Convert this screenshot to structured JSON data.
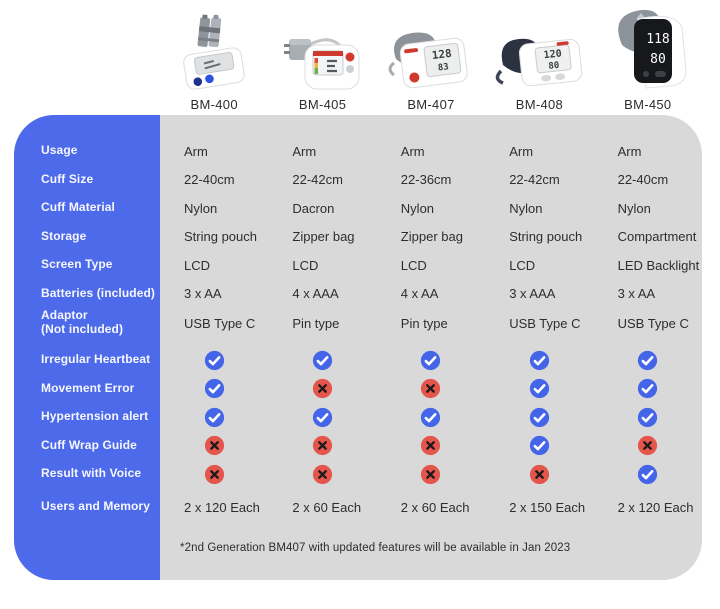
{
  "chart_data": {
    "type": "table",
    "columns": [
      "BM-400",
      "BM-405",
      "BM-407",
      "BM-408",
      "BM-450"
    ],
    "rows": [
      {
        "label": "Usage",
        "kind": "text",
        "values": [
          "Arm",
          "Arm",
          "Arm",
          "Arm",
          "Arm"
        ]
      },
      {
        "label": "Cuff Size",
        "kind": "text",
        "values": [
          "22-40cm",
          "22-42cm",
          "22-36cm",
          "22-42cm",
          "22-40cm"
        ]
      },
      {
        "label": "Cuff Material",
        "kind": "text",
        "values": [
          "Nylon",
          "Dacron",
          "Nylon",
          "Nylon",
          "Nylon"
        ]
      },
      {
        "label": "Storage",
        "kind": "text",
        "values": [
          "String pouch",
          "Zipper bag",
          "Zipper bag",
          "String pouch",
          "Compartment"
        ]
      },
      {
        "label": "Screen Type",
        "kind": "text",
        "values": [
          "LCD",
          "LCD",
          "LCD",
          "LCD",
          "LED Backlight"
        ]
      },
      {
        "label": "Batteries (included)",
        "kind": "text",
        "values": [
          "3 x AA",
          "4 x AAA",
          "4 x AA",
          "3 x AAA",
          "3 x AA"
        ]
      },
      {
        "label": "Adaptor",
        "label2": "(Not included)",
        "kind": "text",
        "values": [
          "USB Type C",
          "Pin type",
          "Pin type",
          "USB Type C",
          "USB Type C"
        ]
      },
      {
        "label": "Irregular Heartbeat",
        "kind": "boolean",
        "values": [
          true,
          true,
          true,
          true,
          true
        ]
      },
      {
        "label": "Movement Error",
        "kind": "boolean",
        "values": [
          true,
          false,
          false,
          true,
          true
        ]
      },
      {
        "label": "Hypertension alert",
        "kind": "boolean",
        "values": [
          true,
          true,
          true,
          true,
          true
        ]
      },
      {
        "label": "Cuff Wrap Guide",
        "kind": "boolean",
        "values": [
          false,
          false,
          false,
          true,
          false
        ]
      },
      {
        "label": "Result with Voice",
        "kind": "boolean",
        "values": [
          false,
          false,
          false,
          false,
          true
        ]
      },
      {
        "label": "Users and Memory",
        "kind": "text",
        "values": [
          "2 x 120 Each",
          "2 x 60 Each",
          "2 x 60 Each",
          "2 x 150 Each",
          "2 x 120 Each"
        ]
      }
    ],
    "footnote": "*2nd Generation BM407 with updated features will be available in Jan 2023",
    "legend": {
      "check_means": "feature included",
      "cross_means": "feature not included"
    }
  },
  "colors": {
    "sidebar_blue": "#4d6aea",
    "panel_gray": "#d9d9d9",
    "check_blue": "#4565e8",
    "cross_red": "#e4564c",
    "label_text": "#f5f7ff",
    "value_text": "#2e2e2e"
  }
}
